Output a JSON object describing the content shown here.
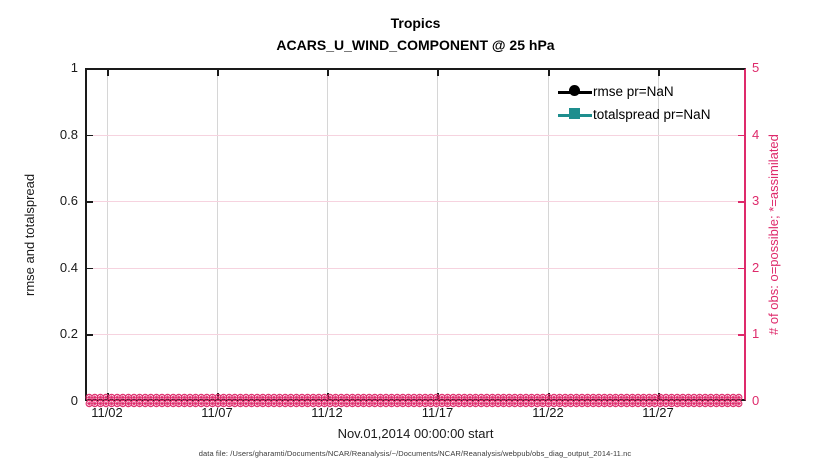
{
  "titles": {
    "line1": "Tropics",
    "line2": "ACARS_U_WIND_COMPONENT @ 25 hPa"
  },
  "axes": {
    "left": {
      "label": "rmse and totalspread",
      "ticks": [
        "1",
        "0.8",
        "0.6",
        "0.4",
        "0.2",
        "0"
      ]
    },
    "right": {
      "label": "# of obs: o=possible; *=assimilated",
      "ticks": [
        "5",
        "4",
        "3",
        "2",
        "1",
        "0"
      ]
    },
    "x": {
      "label": "Nov.01,2014 00:00:00 start",
      "ticks": [
        "11/02",
        "11/07",
        "11/12",
        "11/17",
        "11/22",
        "11/27"
      ]
    }
  },
  "legend": [
    {
      "label": "rmse pr=NaN",
      "color": "#000000",
      "marker": "circle"
    },
    {
      "label": "totalspread pr=NaN",
      "color": "#1e8e8e",
      "marker": "square"
    }
  ],
  "footer": "data file: /Users/gharamti/Documents/NCAR/Reanalysis/~/Documents/NCAR/Reanalysis/webpub/obs_diag_output_2014-11.nc",
  "colors": {
    "pink": "#de2a6b",
    "pink_grid": "#f6d3df",
    "gray_grid": "#d6d6d6",
    "teal": "#1e8e8e",
    "axis_black": "#1a1a1a"
  },
  "chart_data": {
    "type": "line",
    "title": "Tropics",
    "subtitle": "ACARS_U_WIND_COMPONENT @ 25 hPa",
    "xlabel": "Nov.01,2014 00:00:00 start",
    "ylabel_left": "rmse and totalspread",
    "ylabel_right": "# of obs: o=possible; *=assimilated",
    "x_range": [
      "2014-11-01 00:00:00",
      "2014-12-01 00:00:00"
    ],
    "x_ticks": [
      "11/02",
      "11/07",
      "11/12",
      "11/17",
      "11/22",
      "11/27"
    ],
    "ylim_left": [
      0,
      1
    ],
    "ylim_right": [
      0,
      5
    ],
    "grid": true,
    "series": [
      {
        "name": "rmse pr=NaN",
        "axis": "left",
        "color": "#000000",
        "marker": "filled-circle",
        "values": "NaN for all times (no curve drawn)"
      },
      {
        "name": "totalspread pr=NaN",
        "axis": "left",
        "color": "#1e8e8e",
        "marker": "filled-square",
        "values": "NaN for all times (no curve drawn)"
      },
      {
        "name": "obs possible (o)",
        "axis": "right",
        "color": "#de2a6b",
        "marker": "open-circle",
        "value_constant": 0
      },
      {
        "name": "obs assimilated (*)",
        "axis": "right",
        "color": "#de2a6b",
        "marker": "asterisk",
        "value_constant": 0
      }
    ],
    "obs_marker_color": "#de2a6b",
    "obs_band_note": "dense overlapping o and * markers at y=0 across full date range"
  }
}
